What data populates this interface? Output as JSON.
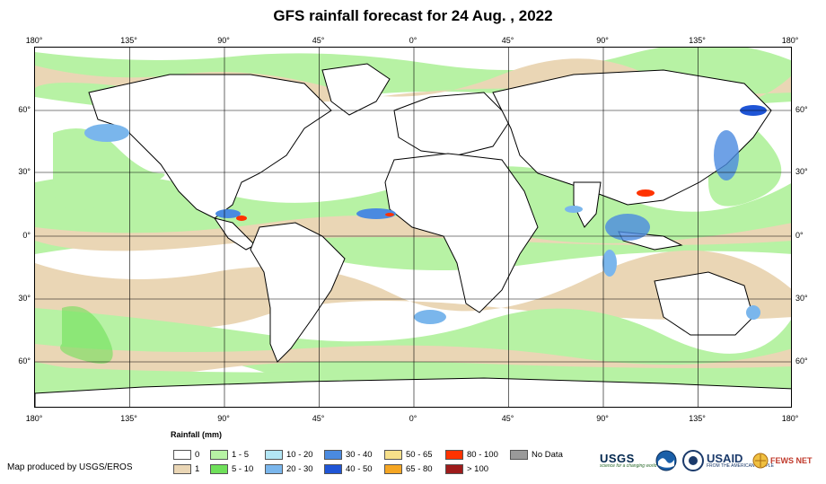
{
  "title": "GFS rainfall forecast for 24 Aug. , 2022",
  "map": {
    "type": "world-rainfall-forecast",
    "lon_ticks_top": [
      "180°",
      "135°",
      "90°",
      "45°",
      "0°",
      "45°",
      "90°",
      "135°",
      "180°"
    ],
    "lon_ticks_bottom": [
      "180°",
      "135°",
      "90°",
      "45°",
      "0°",
      "45°",
      "90°",
      "135°",
      "180°"
    ],
    "lat_ticks_left": [
      "60°",
      "30°",
      "0°",
      "30°",
      "60°"
    ],
    "lat_ticks_right": [
      "60°",
      "30°",
      "0°",
      "30°",
      "60°"
    ],
    "gridlines": true,
    "ocean_color": "#ffffff",
    "land_outline_color": "#000000"
  },
  "legend": {
    "title": "Rainfall (mm)",
    "items": [
      {
        "label": "0",
        "color": "#ffffff"
      },
      {
        "label": "1",
        "color": "#ead6b5"
      },
      {
        "label": "1 - 5",
        "color": "#b7f2a4"
      },
      {
        "label": "5 - 10",
        "color": "#6fe05a"
      },
      {
        "label": "10 - 20",
        "color": "#b3e6f5"
      },
      {
        "label": "20 - 30",
        "color": "#7ab6ec"
      },
      {
        "label": "30 - 40",
        "color": "#4a8ae0"
      },
      {
        "label": "40 - 50",
        "color": "#1f55d6"
      },
      {
        "label": "50 - 65",
        "color": "#f7e08a"
      },
      {
        "label": "65 - 80",
        "color": "#f5a623"
      },
      {
        "label": "80 - 100",
        "color": "#ff3300"
      },
      {
        "label": "> 100",
        "color": "#9e1b1b"
      },
      {
        "label": "No Data",
        "color": "#9a9a9a"
      }
    ]
  },
  "credit": "Map produced by USGS/EROS",
  "logos": {
    "usgs": "USGS",
    "usgs_tagline": "science for a changing world",
    "noaa": "noaa-logo",
    "usaid": "USAID",
    "usaid_tagline": "FROM THE AMERICAN PEOPLE",
    "fews": "FEWS NET"
  }
}
